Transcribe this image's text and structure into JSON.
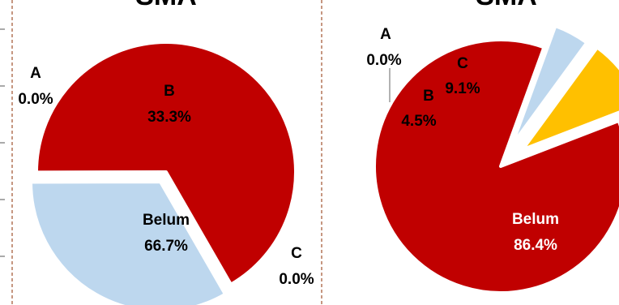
{
  "colors": {
    "A": "#d9d9d9",
    "B": "#bdd7ee",
    "C": "#ffc000",
    "Belum": "#c00000",
    "label_dark": "#000000",
    "label_light": "#ffffff",
    "separator": "#a0522d"
  },
  "chart_data": [
    {
      "type": "pie",
      "title": "SMA",
      "slices": [
        {
          "name": "A",
          "value": 0.0,
          "label": "0.0%"
        },
        {
          "name": "B",
          "value": 33.3,
          "label": "33.3%"
        },
        {
          "name": "C",
          "value": 0.0,
          "label": "0.0%"
        },
        {
          "name": "Belum",
          "value": 66.7,
          "label": "66.7%"
        }
      ]
    },
    {
      "type": "pie",
      "title": "SMA",
      "slices": [
        {
          "name": "A",
          "value": 0.0,
          "label": "0.0%"
        },
        {
          "name": "B",
          "value": 4.5,
          "label": "4.5%"
        },
        {
          "name": "C",
          "value": 9.1,
          "label": "9.1%"
        },
        {
          "name": "Belum",
          "value": 86.4,
          "label": "86.4%"
        }
      ]
    }
  ]
}
